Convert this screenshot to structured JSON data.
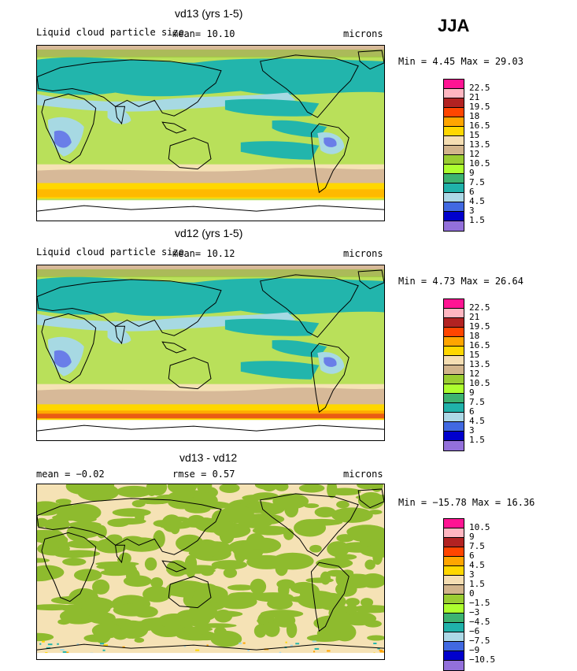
{
  "season": "JJA",
  "panels": [
    {
      "title": "vd13 (yrs 1-5)",
      "left_label": "Liquid cloud particle size",
      "mean_text": "mean=   10.10",
      "units": "microns",
      "minmax": "Min =    4.45 Max =   29.03",
      "legend_labels": [
        "22.5",
        "21",
        "19.5",
        "18",
        "16.5",
        "15",
        "13.5",
        "12",
        "10.5",
        "9",
        "7.5",
        "6",
        "4.5",
        "3",
        "1.5"
      ]
    },
    {
      "title": "vd12 (yrs 1-5)",
      "left_label": "Liquid cloud particle size",
      "mean_text": "mean=   10.12",
      "units": "microns",
      "minmax": "Min =    4.73 Max =   26.64",
      "legend_labels": [
        "22.5",
        "21",
        "19.5",
        "18",
        "16.5",
        "15",
        "13.5",
        "12",
        "10.5",
        "9",
        "7.5",
        "6",
        "4.5",
        "3",
        "1.5"
      ]
    },
    {
      "title": "vd13 - vd12",
      "left_label": "mean =   −0.02",
      "mean_text": "rmse =    0.57",
      "units": "microns",
      "minmax": "Min = −15.78 Max =   16.36",
      "legend_labels": [
        "10.5",
        "9",
        "7.5",
        "6",
        "4.5",
        "3",
        "1.5",
        "0",
        "−1.5",
        "−3",
        "−4.5",
        "−6",
        "−7.5",
        "−9",
        "−10.5"
      ]
    }
  ],
  "legend_colors": [
    "#ff1493",
    "#ffb6c1",
    "#b22222",
    "#ff4500",
    "#ffa500",
    "#ffd700",
    "#f5deb3",
    "#d2b48c",
    "#9acd32",
    "#adff2f",
    "#3cb371",
    "#20b2aa",
    "#add8e6",
    "#4169e1",
    "#0000cd",
    "#9370db"
  ],
  "map_colors": {
    "lavender": "#6a7ee8",
    "lightblue": "#a7d9e3",
    "teal": "#22b5ac",
    "lightgreen": "#b9e05a",
    "olive": "#8ebb2e",
    "tan": "#d7b998",
    "wheat": "#f5e2b5",
    "yellow": "#ffd700",
    "orange": "#ffa500",
    "red": "#e03a1e"
  }
}
